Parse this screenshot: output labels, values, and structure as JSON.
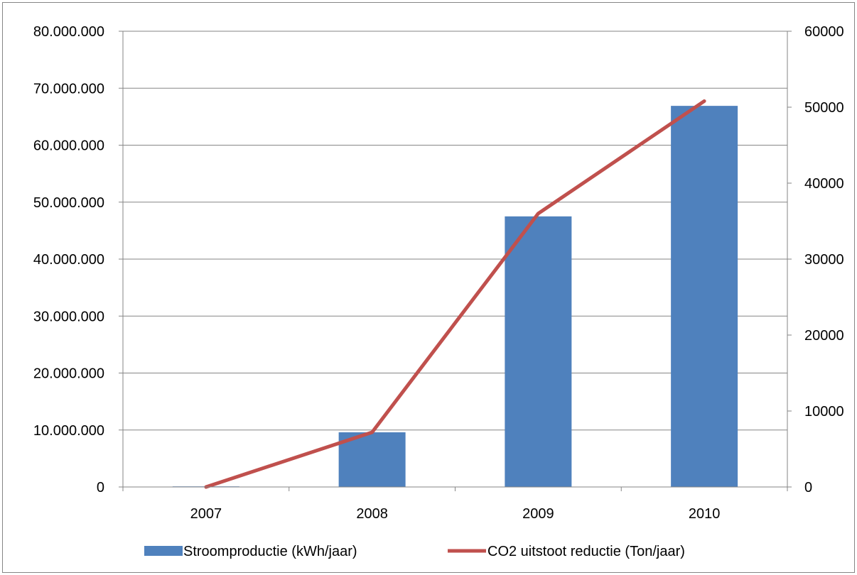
{
  "chart_data": {
    "type": "bar",
    "categories": [
      "2007",
      "2008",
      "2009",
      "2010"
    ],
    "series": [
      {
        "name": "Stroomproductie (kWh/jaar)",
        "type": "bar",
        "axis": "left",
        "color": "#4F81BD",
        "values": [
          100000,
          9600000,
          47500000,
          66900000
        ]
      },
      {
        "name": "CO2 uitstoot reductie (Ton/jaar)",
        "type": "line",
        "axis": "right",
        "color": "#C0504D",
        "values": [
          0,
          7200,
          36000,
          50800
        ]
      }
    ],
    "y_left": {
      "ylim": [
        0,
        80000000
      ],
      "ticks": [
        "0",
        "10.000.000",
        "20.000.000",
        "30.000.000",
        "40.000.000",
        "50.000.000",
        "60.000.000",
        "70.000.000",
        "80.000.000"
      ]
    },
    "y_right": {
      "ylim": [
        0,
        60000
      ],
      "ticks": [
        "0",
        "10000",
        "20000",
        "30000",
        "40000",
        "50000",
        "60000"
      ]
    },
    "grid": true,
    "legend": "bottom"
  }
}
